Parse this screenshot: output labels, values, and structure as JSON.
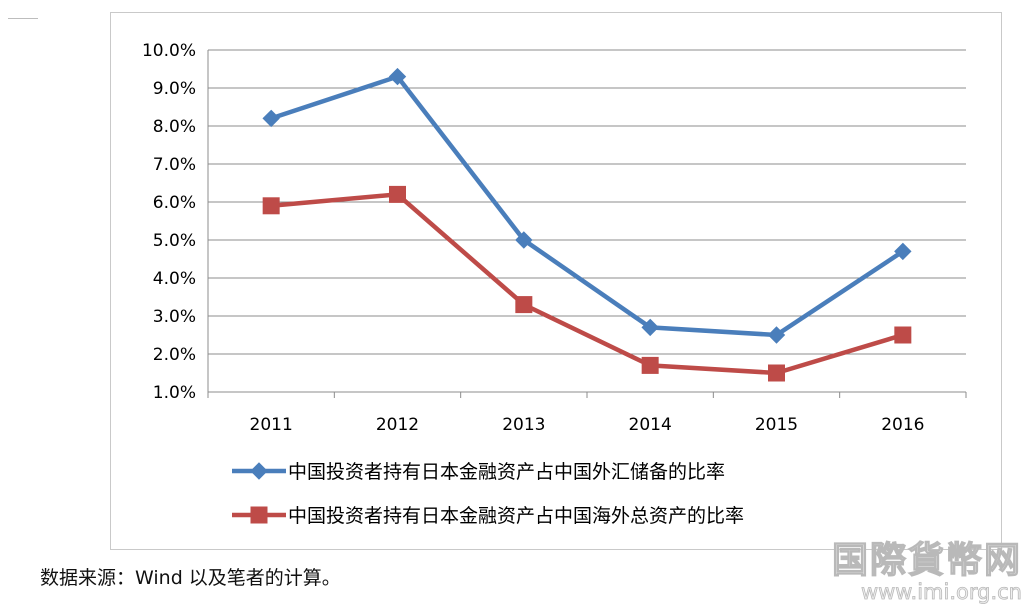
{
  "chart_data": {
    "type": "line",
    "categories": [
      "2011",
      "2012",
      "2013",
      "2014",
      "2015",
      "2016"
    ],
    "ylim": [
      0.01,
      0.1
    ],
    "y_ticks": [
      "1.0%",
      "2.0%",
      "3.0%",
      "4.0%",
      "5.0%",
      "6.0%",
      "7.0%",
      "8.0%",
      "9.0%",
      "10.0%"
    ],
    "grid": true,
    "legend_position": "bottom",
    "series": [
      {
        "name": "中国投资者持有日本金融资产占中国外汇储备的比率",
        "color": "#4a7ebb",
        "marker": "diamond",
        "values": [
          0.082,
          0.093,
          0.05,
          0.027,
          0.025,
          0.047
        ]
      },
      {
        "name": "中国投资者持有日本金融资产占中国海外总资产的比率",
        "color": "#be4b48",
        "marker": "square",
        "values": [
          0.059,
          0.062,
          0.033,
          0.017,
          0.015,
          0.025
        ]
      }
    ]
  },
  "source_note": "数据来源：Wind 以及笔者的计算。",
  "watermark": {
    "name": "国際貨幣网",
    "url": "www.imi.org.cn"
  }
}
